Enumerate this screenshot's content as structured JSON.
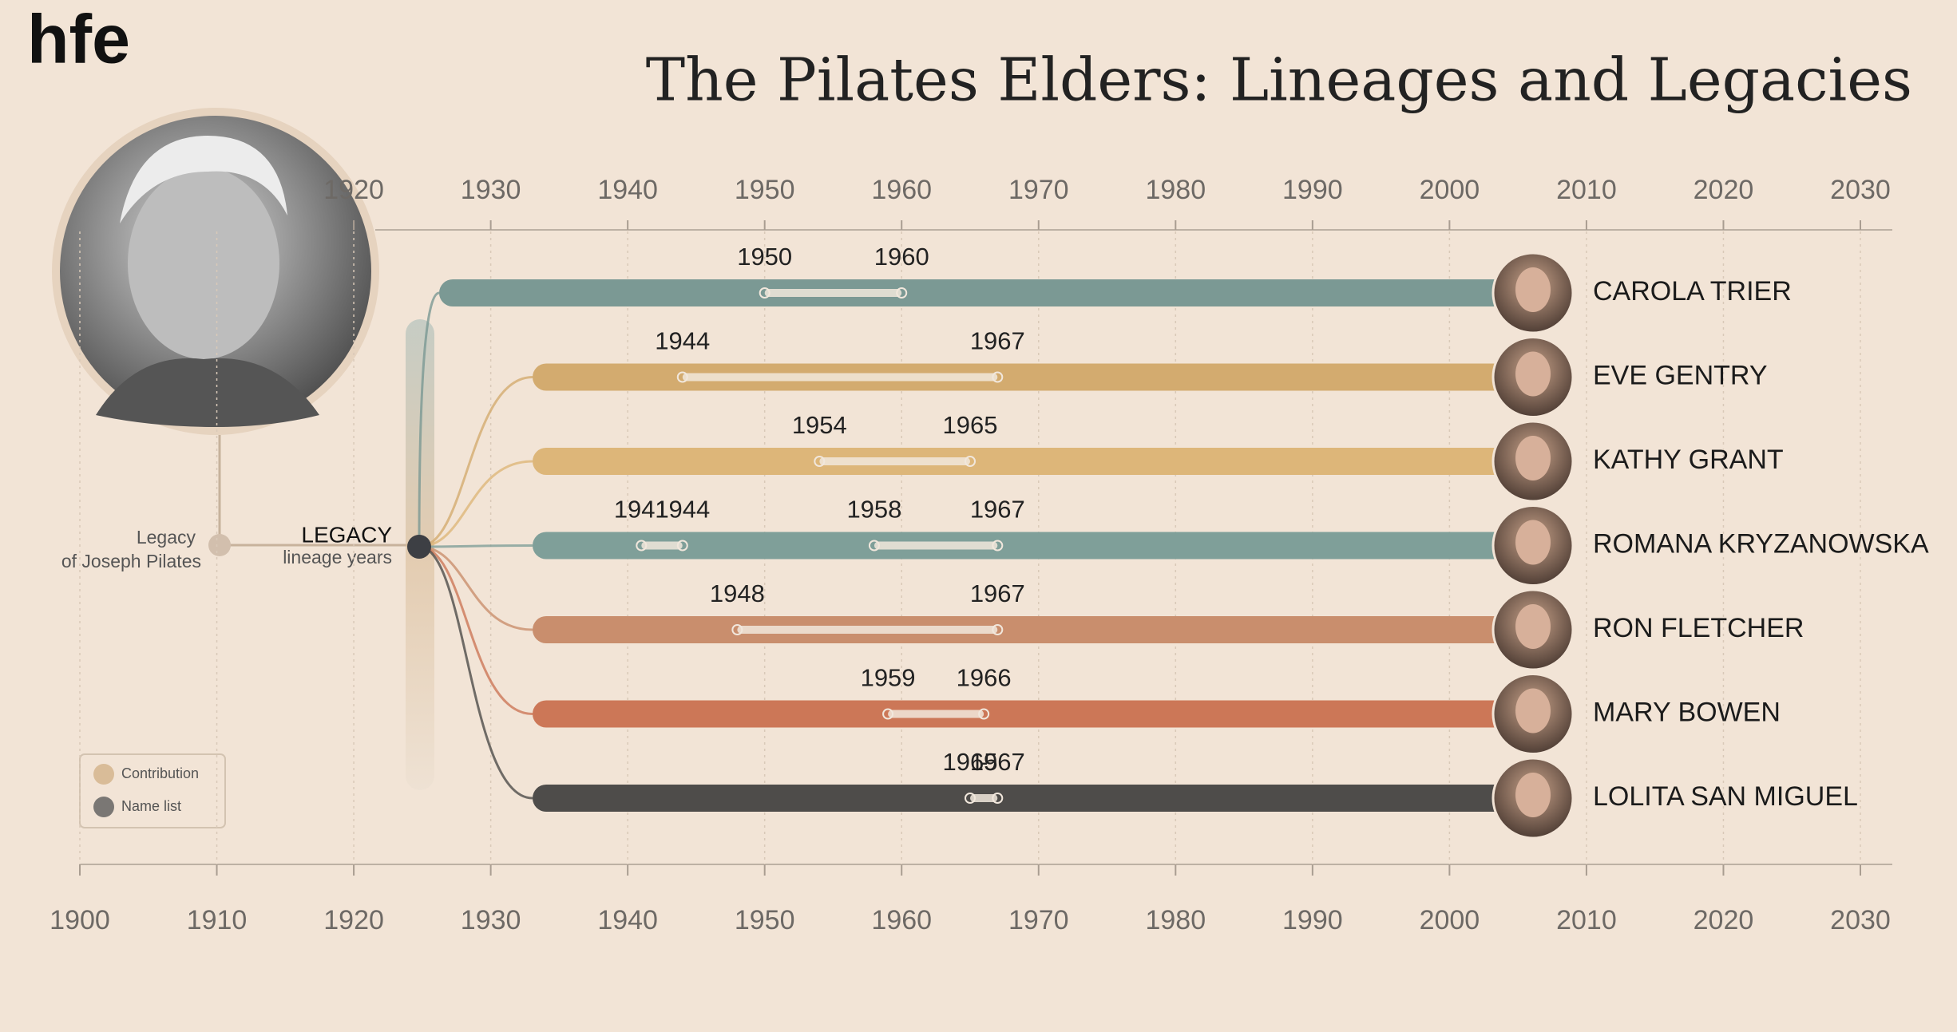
{
  "logo": "hfe",
  "chart_data": {
    "type": "timeline",
    "title": "The Pilates Elders: Lineages and Legacies",
    "root_label": [
      "Legacy",
      "of Joseph Pilates"
    ],
    "hub_label": [
      "LEGACY",
      "lineage years"
    ],
    "legend": [
      {
        "name": "Contribution",
        "color": "#d9bc98"
      },
      {
        "name": "Name list",
        "color": "#7a7774"
      }
    ],
    "xlim": [
      1900,
      2030
    ],
    "xticks": [
      1900,
      1910,
      1920,
      1930,
      1940,
      1950,
      1960,
      1970,
      1980,
      1990,
      2000,
      2010,
      2020,
      2030
    ],
    "x2ticks": [
      1920,
      1930,
      1940,
      1950,
      1960,
      1970,
      1980,
      1990,
      2000,
      2010,
      2020,
      2030
    ],
    "grid": true,
    "series": [
      {
        "name": "CAROLA TRIER",
        "color": "#7b9994",
        "ranges": [
          [
            1950,
            1960
          ]
        ]
      },
      {
        "name": "EVE GENTRY",
        "color": "#d3ab6f",
        "ranges": [
          [
            1944,
            1967
          ]
        ]
      },
      {
        "name": "KATHY GRANT",
        "color": "#ddb679",
        "ranges": [
          [
            1954,
            1965
          ]
        ]
      },
      {
        "name": "ROMANA KRYZANOWSKA",
        "color": "#7f9f99",
        "ranges": [
          [
            1941,
            1944
          ],
          [
            1958,
            1967
          ]
        ]
      },
      {
        "name": "RON FLETCHER",
        "color": "#c98e6d",
        "ranges": [
          [
            1948,
            1967
          ]
        ]
      },
      {
        "name": "MARY BOWEN",
        "color": "#cc7757",
        "ranges": [
          [
            1959,
            1966
          ]
        ]
      },
      {
        "name": "LOLITA SAN MIGUEL",
        "color": "#4e4c4a",
        "ranges": [
          [
            1965,
            1967
          ]
        ],
        "separator": "-"
      }
    ]
  }
}
